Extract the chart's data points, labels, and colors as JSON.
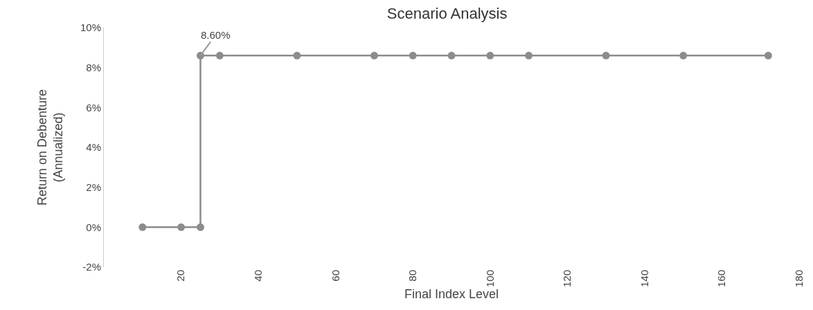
{
  "chart_data": {
    "type": "line",
    "title": "Scenario Analysis",
    "xlabel": "Final Index Level",
    "ylabel": "Return on Debenture\n(Annualized)",
    "x": [
      10,
      20,
      25,
      25,
      30,
      50,
      70,
      80,
      90,
      100,
      110,
      130,
      150,
      172
    ],
    "series": [
      {
        "color": "#8c8c8c",
        "values": [
          0,
          0,
          0,
          8.6,
          8.6,
          8.6,
          8.6,
          8.6,
          8.6,
          8.6,
          8.6,
          8.6,
          8.6,
          8.6
        ]
      }
    ],
    "marker": "circle",
    "line_style": "solid",
    "grid": false,
    "xlim": [
      0,
      180
    ],
    "xticks": [
      20,
      40,
      60,
      80,
      100,
      120,
      140,
      160,
      180
    ],
    "ylim": [
      -2,
      10
    ],
    "yticks": [
      {
        "value": -2,
        "label": "-2%"
      },
      {
        "value": 0,
        "label": "0%"
      },
      {
        "value": 2,
        "label": "2%"
      },
      {
        "value": 4,
        "label": "4%"
      },
      {
        "value": 6,
        "label": "6%"
      },
      {
        "value": 8,
        "label": "8%"
      },
      {
        "value": 10,
        "label": "10%"
      }
    ],
    "annotations": [
      {
        "text": "8.60%",
        "x": 25,
        "y": 8.6
      }
    ]
  }
}
